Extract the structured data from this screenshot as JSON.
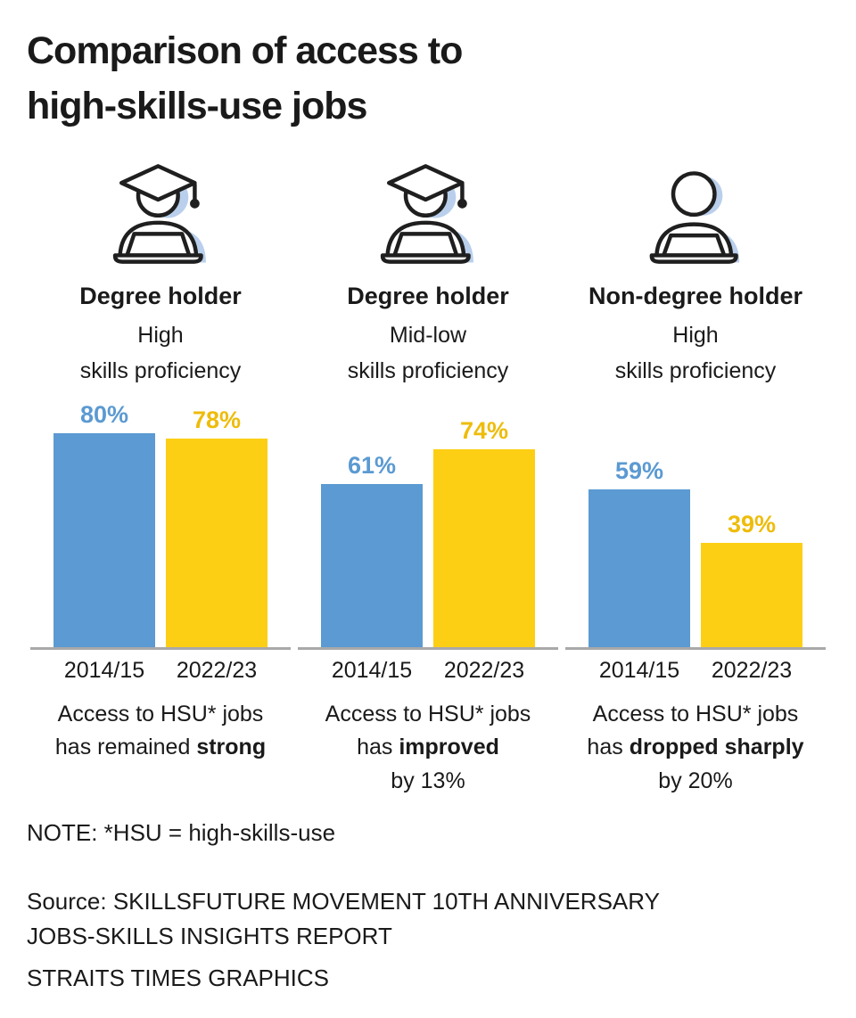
{
  "page": {
    "title_line1": "Comparison of access to",
    "title_line2": "high-skills-use jobs",
    "note": "NOTE: *HSU = high-skills-use",
    "source_line1": "Source: SKILLSFUTURE MOVEMENT 10TH ANNIVERSARY",
    "source_line2": "JOBS-SKILLS INSIGHTS REPORT",
    "credit": "STRAITS TIMES GRAPHICS"
  },
  "colors": {
    "bar_2014_15": "#5b9ad2",
    "bar_2022_23": "#fccf14",
    "value_label_blue": "#5b9ad2",
    "value_label_yellow": "#eebc0a",
    "baseline_gray": "#a9a9a9",
    "icon_shadow_blue": "#b9cfec",
    "icon_outline": "#1f1f1f",
    "text": "#1a1a1a"
  },
  "icons": {
    "degree_holder": "graduate-at-laptop-icon",
    "non_degree_holder": "person-at-laptop-icon"
  },
  "chart_data": {
    "type": "bar",
    "title": "Comparison of access to high-skills-use jobs",
    "unit": "%",
    "categories": [
      "2014/15",
      "2022/23"
    ],
    "ylim": [
      0,
      100
    ],
    "legend": "none",
    "grid": false,
    "groups": [
      {
        "icon": "graduate-at-laptop-icon",
        "label": "Degree holder",
        "sublabel_line1": "High",
        "sublabel_line2": "skills proficiency",
        "values": [
          80,
          78
        ],
        "value_labels": [
          "80%",
          "78%"
        ],
        "caption_line1": "Access to HSU* jobs",
        "caption_prefix": "has remained ",
        "caption_bold": "strong",
        "caption_suffix": "",
        "caption_line3": ""
      },
      {
        "icon": "graduate-at-laptop-icon",
        "label": "Degree holder",
        "sublabel_line1": "Mid-low",
        "sublabel_line2": "skills proficiency",
        "values": [
          61,
          74
        ],
        "value_labels": [
          "61%",
          "74%"
        ],
        "caption_line1": "Access to HSU* jobs",
        "caption_prefix": "has ",
        "caption_bold": "improved",
        "caption_suffix": "",
        "caption_line3": "by 13%"
      },
      {
        "icon": "person-at-laptop-icon",
        "label": "Non-degree holder",
        "sublabel_line1": "High",
        "sublabel_line2": "skills proficiency",
        "values": [
          59,
          39
        ],
        "value_labels": [
          "59%",
          "39%"
        ],
        "caption_line1": "Access to HSU* jobs",
        "caption_prefix": "has ",
        "caption_bold": "dropped sharply",
        "caption_suffix": "",
        "caption_line3": "by 20%"
      }
    ]
  }
}
